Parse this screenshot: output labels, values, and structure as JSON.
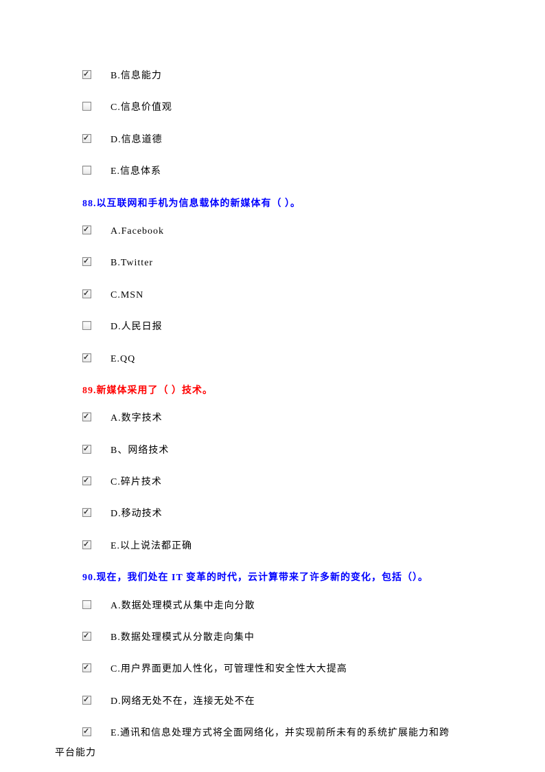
{
  "colors": {
    "question_blue": "#0000ff",
    "question_red": "#ff0000",
    "text_black": "#000000",
    "background": "#ffffff"
  },
  "typography": {
    "font_family": "SimSun",
    "font_size": 14,
    "letter_spacing": 1
  },
  "pre_options": [
    {
      "label": "B.信息能力",
      "checked": true
    },
    {
      "label": "C.信息价值观",
      "checked": false
    },
    {
      "label": "D.信息道德",
      "checked": true
    },
    {
      "label": "E.信息体系",
      "checked": false
    }
  ],
  "questions": [
    {
      "number": "88",
      "text": "88.以互联网和手机为信息载体的新媒体有（ ）。",
      "color": "blue",
      "options": [
        {
          "label": "A.Facebook",
          "checked": true
        },
        {
          "label": "B.Twitter",
          "checked": true
        },
        {
          "label": "C.MSN",
          "checked": true
        },
        {
          "label": "D.人民日报",
          "checked": false
        },
        {
          "label": "E.QQ",
          "checked": true
        }
      ]
    },
    {
      "number": "89",
      "text": "89.新媒体采用了（ ）技术。",
      "color": "red",
      "options": [
        {
          "label": "A.数字技术",
          "checked": true
        },
        {
          "label": "B、网络技术",
          "checked": true
        },
        {
          "label": "C.碎片技术",
          "checked": true
        },
        {
          "label": "D.移动技术",
          "checked": true
        },
        {
          "label": "E.以上说法都正确",
          "checked": true
        }
      ]
    },
    {
      "number": "90",
      "text": "90.现在，我们处在 IT 变革的时代，云计算带来了许多新的变化，包括（）。",
      "color": "blue",
      "options": [
        {
          "label": "A.数据处理模式从集中走向分散",
          "checked": false
        },
        {
          "label": "B.数据处理模式从分散走向集中",
          "checked": true
        },
        {
          "label": "C.用户界面更加人性化，可管理性和安全性大大提高",
          "checked": true
        },
        {
          "label": "D.网络无处不在，连接无处不在",
          "checked": true
        },
        {
          "label": "E.通讯和信息处理方式将全面网络化，并实现前所未有的系统扩展能力和跨",
          "checked": true,
          "wrap": "平台能力"
        }
      ]
    }
  ]
}
